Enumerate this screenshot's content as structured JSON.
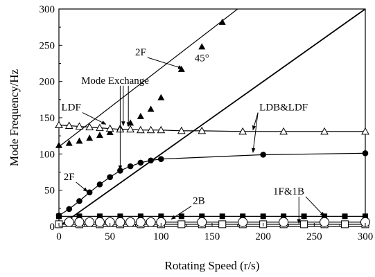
{
  "chart_data": {
    "type": "line",
    "xlabel": "Rotating Speed (r/s)",
    "ylabel": "Mode Frequency/Hz",
    "xlim": [
      0,
      300
    ],
    "ylim": [
      0,
      300
    ],
    "xticks": [
      "0",
      "50",
      "100",
      "150",
      "200",
      "250",
      "300"
    ],
    "yticks": [
      "0",
      "50",
      "100",
      "150",
      "200",
      "250",
      "300"
    ],
    "grid": false,
    "series": [
      {
        "name": "",
        "marker": "filled-triangle",
        "x": [
          0,
          10,
          20,
          30,
          40,
          50,
          60,
          70,
          80,
          90,
          100,
          120,
          140,
          160
        ],
        "y": [
          112,
          115,
          118,
          122,
          126,
          130,
          136,
          143,
          152,
          162,
          178,
          217,
          248,
          282
        ],
        "line_x": [
          0,
          175
        ],
        "line_y": [
          110,
          300
        ]
      },
      {
        "name": "",
        "marker": "open-triangle",
        "x": [
          0,
          10,
          20,
          30,
          40,
          50,
          60,
          70,
          80,
          90,
          100,
          120,
          140,
          180,
          220,
          260,
          300
        ],
        "y": [
          140,
          139,
          138,
          137,
          136,
          135,
          134,
          134,
          133,
          133,
          133,
          132,
          132,
          131,
          131,
          131,
          131
        ]
      },
      {
        "name": "",
        "marker": "filled-circle",
        "x": [
          0,
          10,
          20,
          30,
          40,
          50,
          60,
          70,
          80,
          90,
          100,
          200,
          300
        ],
        "y": [
          15,
          24,
          35,
          47,
          58,
          68,
          77,
          83,
          88,
          91,
          93,
          99,
          101
        ]
      },
      {
        "name": "",
        "marker": "filled-square",
        "x": [
          0,
          20,
          40,
          60,
          80,
          100,
          120,
          140,
          160,
          180,
          200,
          220,
          240,
          260,
          280,
          300
        ],
        "y": [
          14,
          14,
          14,
          14,
          14,
          14,
          14,
          14,
          14,
          14,
          14,
          14,
          14,
          14,
          14,
          14
        ]
      },
      {
        "name": "",
        "marker": "open-square",
        "x": [
          0,
          20,
          40,
          60,
          80,
          100,
          120,
          140,
          160,
          180,
          200,
          220,
          240,
          260,
          280,
          300
        ],
        "y": [
          3,
          3,
          3,
          3,
          3,
          3,
          3,
          3,
          3,
          3,
          3,
          3,
          3,
          3,
          3,
          3
        ]
      },
      {
        "name": "",
        "marker": "open-circle",
        "x": [
          10,
          20,
          30,
          40,
          50,
          60,
          70,
          80,
          90,
          100,
          140,
          180,
          220,
          260,
          300
        ],
        "y": [
          6,
          6,
          6,
          6,
          6,
          6,
          6,
          6,
          6,
          6,
          6,
          6,
          6,
          6,
          6
        ]
      }
    ],
    "reference_line": {
      "label": "45°",
      "x": [
        0,
        300
      ],
      "y": [
        0,
        300
      ]
    },
    "annotations": [
      {
        "text": "2F",
        "x": 80,
        "y": 236,
        "arrow_to": [
          [
            121,
            218
          ]
        ]
      },
      {
        "text": "Mode Exchange",
        "x": 55,
        "y": 197,
        "arrow_to": [
          [
            63,
            139
          ],
          [
            68,
            138
          ],
          [
            60,
            78
          ]
        ]
      },
      {
        "text": "LDF",
        "x": 12,
        "y": 160,
        "arrow_to": [
          [
            46,
            141
          ]
        ]
      },
      {
        "text": "45°",
        "x": 140,
        "y": 228,
        "arrow_to": []
      },
      {
        "text": "LDB&LDF",
        "x": 220,
        "y": 160,
        "arrow_to": [
          [
            190,
            133
          ],
          [
            190,
            102
          ]
        ]
      },
      {
        "text": "2F",
        "x": 10,
        "y": 64,
        "arrow_to": [
          [
            28,
            48
          ]
        ]
      },
      {
        "text": "1F&1B",
        "x": 225,
        "y": 44,
        "arrow_to": [
          [
            260,
            14
          ],
          [
            235,
            4
          ]
        ]
      },
      {
        "text": "2B",
        "x": 137,
        "y": 31,
        "arrow_to": [
          [
            110,
            10
          ]
        ]
      }
    ]
  }
}
